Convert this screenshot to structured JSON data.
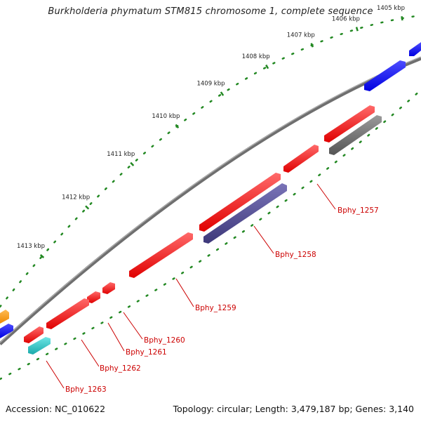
{
  "map": {
    "title": "Burkholderia phymatum STM815 chromosome 1, complete sequence",
    "accession_text": "Accession: NC_010622",
    "summary_text": "Topology: circular; Length: 3,479,187 bp; Genes: 3,140"
  },
  "colors": {
    "backbone": "#808080",
    "forward_strand": "#ff0000",
    "reverse_blue": "#0000ff",
    "reverse_navy": "#4a4590",
    "reverse_gray": "#666666",
    "teal": "#22cccc",
    "orange": "#ff9900",
    "tick": "#228822",
    "label": "#cc0000"
  },
  "scale": {
    "ticks": [
      {
        "label": "1405 kbp",
        "kbp": 1405
      },
      {
        "label": "1406 kbp",
        "kbp": 1406
      },
      {
        "label": "1407 kbp",
        "kbp": 1407
      },
      {
        "label": "1408 kbp",
        "kbp": 1408
      },
      {
        "label": "1409 kbp",
        "kbp": 1409
      },
      {
        "label": "1410 kbp",
        "kbp": 1410
      },
      {
        "label": "1411 kbp",
        "kbp": 1411
      },
      {
        "label": "1412 kbp",
        "kbp": 1412
      },
      {
        "label": "1413 kbp",
        "kbp": 1413
      }
    ]
  },
  "features": [
    {
      "name": "forward-gene-1257-upper",
      "strand": "forward",
      "color": "forward_strand",
      "label": ""
    },
    {
      "name": "forward-gene-1257",
      "strand": "forward",
      "color": "forward_strand",
      "label": "Bphy_1257"
    },
    {
      "name": "forward-gene-1259",
      "strand": "forward",
      "color": "forward_strand",
      "label": "Bphy_1259"
    },
    {
      "name": "forward-gene-1260",
      "strand": "forward",
      "color": "forward_strand",
      "label": "Bphy_1260"
    },
    {
      "name": "forward-gene-1261",
      "strand": "forward",
      "color": "forward_strand",
      "label": "Bphy_1261"
    },
    {
      "name": "forward-gene-1262",
      "strand": "forward",
      "color": "forward_strand",
      "label": "Bphy_1262"
    },
    {
      "name": "forward-gene-1263",
      "strand": "forward",
      "color": "forward_strand",
      "label": "Bphy_1263"
    },
    {
      "name": "reverse-gene-1258",
      "strand": "reverse",
      "color": "reverse_navy",
      "label": "Bphy_1258"
    },
    {
      "name": "reverse-gene-gray",
      "strand": "reverse",
      "color": "reverse_gray",
      "label": ""
    },
    {
      "name": "reverse-gene-blue-top",
      "strand": "reverse",
      "color": "reverse_blue",
      "label": ""
    },
    {
      "name": "teal-feature",
      "strand": "reverse",
      "color": "teal",
      "label": ""
    }
  ]
}
